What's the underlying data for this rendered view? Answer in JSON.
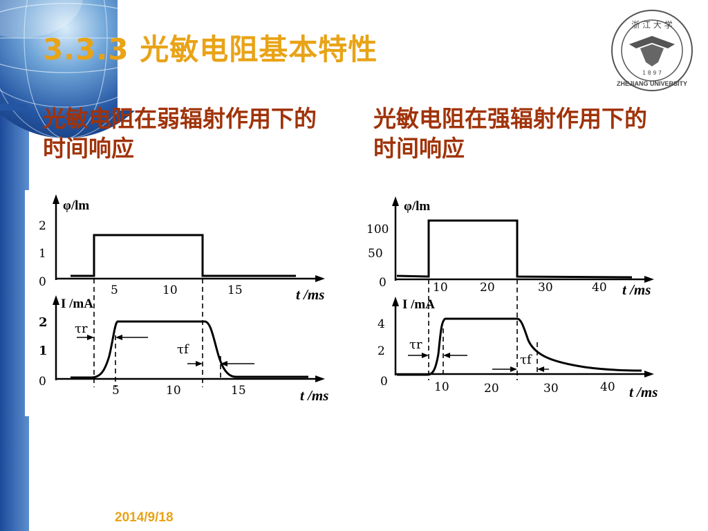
{
  "slide": {
    "title": "3.3.3 光敏电阻基本特性",
    "date": "2014/9/18",
    "logo": {
      "text_top": "浙 江 大 学",
      "year": "1 8 9 7",
      "text_bottom": "ZHEJIANG UNIVERSITY"
    },
    "colors": {
      "title": "#e8a317",
      "subtitle": "#a0330a",
      "sidebar": "#1f4fa0"
    }
  },
  "left": {
    "subtitle": "光敏电阻在弱辐射作用下的时间响应",
    "phi_label": "φ/lm",
    "phi_ticks": [
      "2",
      "1",
      "0"
    ],
    "t_ticks_top": [
      "5",
      "10",
      "15"
    ],
    "t_label": "t /ms",
    "i_label": "I /mA",
    "i_ticks": [
      "2",
      "1",
      "0"
    ],
    "t_ticks_bottom": [
      "5",
      "10",
      "15"
    ],
    "tau_r": "τr",
    "tau_f": "τf"
  },
  "right": {
    "subtitle": "光敏电阻在强辐射作用下的时间响应",
    "phi_label": "φ/lm",
    "phi_ticks": [
      "100",
      "50",
      "0"
    ],
    "t_ticks_top": [
      "10",
      "20",
      "30",
      "40"
    ],
    "t_label": "t /ms",
    "i_label": "I /mA",
    "i_ticks": [
      "4",
      "2",
      "0"
    ],
    "t_ticks_bottom": [
      "10",
      "20",
      "30",
      "40"
    ],
    "tau_r": "τr",
    "tau_f": "τf"
  }
}
